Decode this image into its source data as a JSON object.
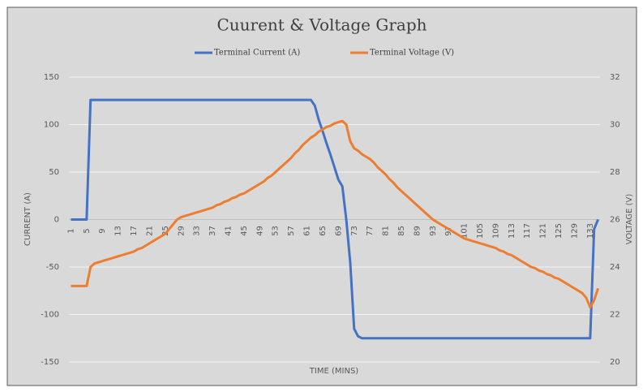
{
  "chart_data": {
    "type": "line",
    "title": "Cuurent & Voltage Graph",
    "x_label": "TIME (MINS)",
    "y_label": "CURRENT (A)",
    "y2_label": "VOLTAGE (V)",
    "categories": [
      1,
      null,
      null,
      null,
      5,
      null,
      null,
      null,
      9,
      null,
      null,
      null,
      13,
      null,
      null,
      null,
      17,
      null,
      null,
      null,
      21,
      null,
      null,
      null,
      25,
      null,
      null,
      null,
      29,
      null,
      null,
      null,
      33,
      null,
      null,
      null,
      37,
      null,
      null,
      null,
      41,
      null,
      null,
      null,
      45,
      null,
      null,
      null,
      49,
      null,
      null,
      null,
      53,
      null,
      null,
      null,
      57,
      null,
      null,
      null,
      61,
      null,
      null,
      null,
      65,
      null,
      null,
      null,
      69,
      null,
      null,
      null,
      73,
      null,
      null,
      null,
      77,
      null,
      null,
      null,
      81,
      null,
      null,
      null,
      85,
      null,
      null,
      null,
      89,
      null,
      null,
      null,
      93,
      null,
      null,
      null,
      97,
      null,
      null,
      null,
      101,
      null,
      null,
      null,
      105,
      null,
      null,
      null,
      109,
      null,
      null,
      null,
      113,
      null,
      null,
      null,
      117,
      null,
      null,
      null,
      121,
      null,
      null,
      null,
      125,
      null,
      null,
      null,
      129,
      null,
      null,
      null,
      133,
      null,
      null
    ],
    "series": [
      {
        "name": "Terminal Current (A)",
        "color": "#4472c4",
        "values": [
          0,
          0,
          0,
          0,
          0,
          126,
          126,
          126,
          126,
          126,
          126,
          126,
          126,
          126,
          126,
          126,
          126,
          126,
          126,
          126,
          126,
          126,
          126,
          126,
          126,
          126,
          126,
          126,
          126,
          126,
          126,
          126,
          126,
          126,
          126,
          126,
          126,
          126,
          126,
          126,
          126,
          126,
          126,
          126,
          126,
          126,
          126,
          126,
          126,
          126,
          126,
          126,
          126,
          126,
          126,
          126,
          126,
          126,
          126,
          126,
          126,
          126,
          120,
          105,
          93,
          80,
          68,
          55,
          42,
          35,
          0,
          -45,
          -115,
          -123,
          -125,
          -125,
          -125,
          -125,
          -125,
          -125,
          -125,
          -125,
          -125,
          -125,
          -125,
          -125,
          -125,
          -125,
          -125,
          -125,
          -125,
          -125,
          -125,
          -125,
          -125,
          -125,
          -125,
          -125,
          -125,
          -125,
          -125,
          -125,
          -125,
          -125,
          -125,
          -125,
          -125,
          -125,
          -125,
          -125,
          -125,
          -125,
          -125,
          -125,
          -125,
          -125,
          -125,
          -125,
          -125,
          -125,
          -125,
          -125,
          -125,
          -125,
          -125,
          -125,
          -125,
          -125,
          -125,
          -125,
          -125,
          -125,
          -125,
          -10,
          0
        ]
      },
      {
        "name": "Terminal Voltage (V)",
        "color": "#ed7d31",
        "axis": "y2",
        "values": [
          23.2,
          23.2,
          23.2,
          23.2,
          23.2,
          24.0,
          24.15,
          24.2,
          24.25,
          24.3,
          24.35,
          24.4,
          24.45,
          24.5,
          24.55,
          24.6,
          24.65,
          24.75,
          24.8,
          24.9,
          25.0,
          25.1,
          25.2,
          25.3,
          25.4,
          25.6,
          25.8,
          26.0,
          26.1,
          26.15,
          26.2,
          26.25,
          26.3,
          26.35,
          26.4,
          26.45,
          26.5,
          26.6,
          26.65,
          26.75,
          26.8,
          26.9,
          26.95,
          27.05,
          27.1,
          27.2,
          27.3,
          27.4,
          27.5,
          27.6,
          27.75,
          27.85,
          28.0,
          28.15,
          28.3,
          28.45,
          28.6,
          28.8,
          28.95,
          29.15,
          29.3,
          29.45,
          29.55,
          29.7,
          29.8,
          29.9,
          29.95,
          30.05,
          30.1,
          30.15,
          30.0,
          29.3,
          29.0,
          28.9,
          28.75,
          28.65,
          28.55,
          28.4,
          28.2,
          28.05,
          27.9,
          27.7,
          27.55,
          27.35,
          27.2,
          27.05,
          26.9,
          26.75,
          26.6,
          26.45,
          26.3,
          26.15,
          26.0,
          25.9,
          25.8,
          25.7,
          25.6,
          25.5,
          25.4,
          25.3,
          25.2,
          25.15,
          25.1,
          25.05,
          25.0,
          24.95,
          24.9,
          24.85,
          24.8,
          24.7,
          24.65,
          24.55,
          24.5,
          24.4,
          24.3,
          24.2,
          24.1,
          24.0,
          23.95,
          23.85,
          23.8,
          23.7,
          23.65,
          23.55,
          23.5,
          23.4,
          23.3,
          23.2,
          23.1,
          23.0,
          22.9,
          22.7,
          22.3,
          22.6,
          23.1
        ]
      }
    ],
    "ylim": [
      -150,
      150
    ],
    "yticks": [
      -150,
      -100,
      -50,
      0,
      50,
      100,
      150
    ],
    "y2lim": [
      20,
      32
    ],
    "y2ticks": [
      20,
      22,
      24,
      26,
      28,
      30,
      32
    ],
    "grid": true,
    "legend": "top"
  }
}
